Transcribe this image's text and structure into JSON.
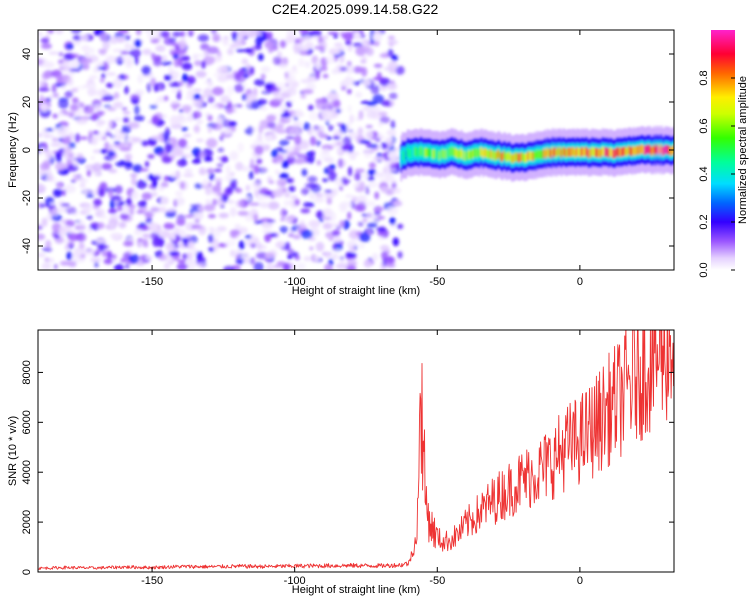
{
  "page": {
    "title": "C2E4.2025.099.14.58.G22"
  },
  "colors": {
    "snr_line": "#ee3333",
    "colormap": [
      "#ffffff",
      "#e8d8ff",
      "#b07cff",
      "#6a00ff",
      "#0000ff",
      "#00ffff",
      "#00ff00",
      "#ffff00",
      "#ff0000",
      "#ff00ff"
    ]
  },
  "chart_data": [
    {
      "type": "heatmap",
      "title": "C2E4.2025.099.14.58.G22",
      "xlabel": "Height of straight line (km)",
      "ylabel": "Frequency (Hz)",
      "xlim": [
        -190,
        33
      ],
      "ylim": [
        -50,
        50
      ],
      "x_ticks": [
        -150,
        -100,
        -50,
        0
      ],
      "y_ticks": [
        -40,
        -20,
        0,
        20,
        40
      ],
      "noise_region": {
        "x": [
          -190,
          -63
        ],
        "y": [
          -50,
          50
        ],
        "description_level": "low amplitude noise"
      },
      "signal_region": {
        "x": [
          -63,
          33
        ],
        "center_frequency_hz": 0,
        "bandwidth_hz": 6
      },
      "signal_center": {
        "x": [
          -63,
          -60,
          -55,
          -50,
          -45,
          -40,
          -35,
          -30,
          -25,
          -20,
          -15,
          -10,
          -5,
          0,
          5,
          10,
          15,
          20,
          25,
          30,
          33
        ],
        "frequency_hz": [
          -3,
          -1,
          -1,
          -2,
          -1,
          -2,
          -1,
          -2,
          -3,
          -3,
          -2,
          -1,
          -1,
          -1,
          -1,
          -1,
          -1,
          0,
          0,
          0,
          0
        ],
        "amplitude": [
          0.3,
          0.45,
          0.5,
          0.5,
          0.55,
          0.55,
          0.6,
          0.65,
          0.7,
          0.7,
          0.65,
          0.7,
          0.7,
          0.75,
          0.75,
          0.8,
          0.75,
          0.8,
          0.85,
          0.85,
          0.8
        ]
      },
      "colorbar": {
        "label": "Normalized spectral amplitude",
        "range": [
          0,
          1
        ],
        "ticks": [
          "0.0",
          "0.2",
          "0.4",
          "0.6",
          "0.8"
        ],
        "tick_values": [
          0,
          0.2,
          0.4,
          0.6,
          0.8
        ]
      }
    },
    {
      "type": "line",
      "xlabel": "Height of straight line (km)",
      "ylabel": "SNR (10 * v/v)",
      "xlim": [
        -190,
        33
      ],
      "ylim": [
        0,
        9700
      ],
      "x_ticks": [
        -150,
        -100,
        -50,
        0
      ],
      "y_ticks": [
        0,
        2000,
        4000,
        6000,
        8000
      ],
      "series": [
        {
          "x": [
            -190,
            -180,
            -170,
            -160,
            -150,
            -140,
            -130,
            -120,
            -110,
            -100,
            -90,
            -80,
            -70,
            -63,
            -60,
            -57,
            -56,
            -55,
            -54,
            -53,
            -52,
            -50,
            -48,
            -45,
            -42,
            -40,
            -35,
            -30,
            -25,
            -20,
            -15,
            -10,
            -5,
            0,
            5,
            10,
            15,
            20,
            25,
            30,
            33
          ],
          "y": [
            150,
            180,
            160,
            200,
            180,
            220,
            210,
            230,
            220,
            240,
            250,
            260,
            250,
            280,
            350,
            1500,
            8300,
            5200,
            2800,
            2200,
            1800,
            1400,
            1200,
            1300,
            1600,
            1900,
            2400,
            2900,
            3300,
            3700,
            4000,
            4400,
            5000,
            5300,
            5800,
            6500,
            7100,
            7900,
            8500,
            9000,
            9100
          ]
        }
      ]
    }
  ]
}
